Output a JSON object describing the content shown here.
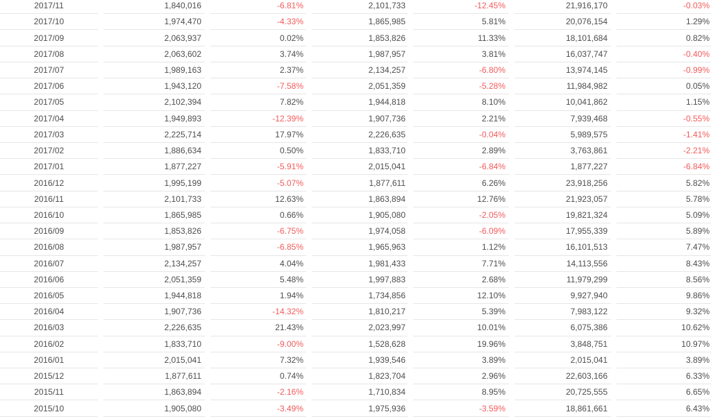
{
  "colors": {
    "text": "#4d4d4d",
    "negative": "#f25b5b",
    "row_border": "#e6e6e6",
    "background": "#ffffff"
  },
  "chart_data": {
    "type": "table",
    "title": "",
    "columns": [
      "date",
      "value_1",
      "change_1_pct",
      "value_2",
      "change_2_pct",
      "value_3",
      "change_3_pct"
    ],
    "column_alignment": [
      "center",
      "right",
      "right",
      "right",
      "right",
      "right",
      "right"
    ],
    "negative_values_shown_in_red": true,
    "rows": [
      [
        "2017/11",
        "1,840,016",
        "-6.81%",
        "2,101,733",
        "-12.45%",
        "21,916,170",
        "-0.03%"
      ],
      [
        "2017/10",
        "1,974,470",
        "-4.33%",
        "1,865,985",
        "5.81%",
        "20,076,154",
        "1.29%"
      ],
      [
        "2017/09",
        "2,063,937",
        "0.02%",
        "1,853,826",
        "11.33%",
        "18,101,684",
        "0.82%"
      ],
      [
        "2017/08",
        "2,063,602",
        "3.74%",
        "1,987,957",
        "3.81%",
        "16,037,747",
        "-0.40%"
      ],
      [
        "2017/07",
        "1,989,163",
        "2.37%",
        "2,134,257",
        "-6.80%",
        "13,974,145",
        "-0.99%"
      ],
      [
        "2017/06",
        "1,943,120",
        "-7.58%",
        "2,051,359",
        "-5.28%",
        "11,984,982",
        "0.05%"
      ],
      [
        "2017/05",
        "2,102,394",
        "7.82%",
        "1,944,818",
        "8.10%",
        "10,041,862",
        "1.15%"
      ],
      [
        "2017/04",
        "1,949,893",
        "-12.39%",
        "1,907,736",
        "2.21%",
        "7,939,468",
        "-0.55%"
      ],
      [
        "2017/03",
        "2,225,714",
        "17.97%",
        "2,226,635",
        "-0.04%",
        "5,989,575",
        "-1.41%"
      ],
      [
        "2017/02",
        "1,886,634",
        "0.50%",
        "1,833,710",
        "2.89%",
        "3,763,861",
        "-2.21%"
      ],
      [
        "2017/01",
        "1,877,227",
        "-5.91%",
        "2,015,041",
        "-6.84%",
        "1,877,227",
        "-6.84%"
      ],
      [
        "2016/12",
        "1,995,199",
        "-5.07%",
        "1,877,611",
        "6.26%",
        "23,918,256",
        "5.82%"
      ],
      [
        "2016/11",
        "2,101,733",
        "12.63%",
        "1,863,894",
        "12.76%",
        "21,923,057",
        "5.78%"
      ],
      [
        "2016/10",
        "1,865,985",
        "0.66%",
        "1,905,080",
        "-2.05%",
        "19,821,324",
        "5.09%"
      ],
      [
        "2016/09",
        "1,853,826",
        "-6.75%",
        "1,974,058",
        "-6.09%",
        "17,955,339",
        "5.89%"
      ],
      [
        "2016/08",
        "1,987,957",
        "-6.85%",
        "1,965,963",
        "1.12%",
        "16,101,513",
        "7.47%"
      ],
      [
        "2016/07",
        "2,134,257",
        "4.04%",
        "1,981,433",
        "7.71%",
        "14,113,556",
        "8.43%"
      ],
      [
        "2016/06",
        "2,051,359",
        "5.48%",
        "1,997,883",
        "2.68%",
        "11,979,299",
        "8.56%"
      ],
      [
        "2016/05",
        "1,944,818",
        "1.94%",
        "1,734,856",
        "12.10%",
        "9,927,940",
        "9.86%"
      ],
      [
        "2016/04",
        "1,907,736",
        "-14.32%",
        "1,810,217",
        "5.39%",
        "7,983,122",
        "9.32%"
      ],
      [
        "2016/03",
        "2,226,635",
        "21.43%",
        "2,023,997",
        "10.01%",
        "6,075,386",
        "10.62%"
      ],
      [
        "2016/02",
        "1,833,710",
        "-9.00%",
        "1,528,628",
        "19.96%",
        "3,848,751",
        "10.97%"
      ],
      [
        "2016/01",
        "2,015,041",
        "7.32%",
        "1,939,546",
        "3.89%",
        "2,015,041",
        "3.89%"
      ],
      [
        "2015/12",
        "1,877,611",
        "0.74%",
        "1,823,704",
        "2.96%",
        "22,603,166",
        "6.33%"
      ],
      [
        "2015/11",
        "1,863,894",
        "-2.16%",
        "1,710,834",
        "8.95%",
        "20,725,555",
        "6.65%"
      ],
      [
        "2015/10",
        "1,905,080",
        "-3.49%",
        "1,975,936",
        "-3.59%",
        "18,861,661",
        "6.43%"
      ]
    ]
  }
}
